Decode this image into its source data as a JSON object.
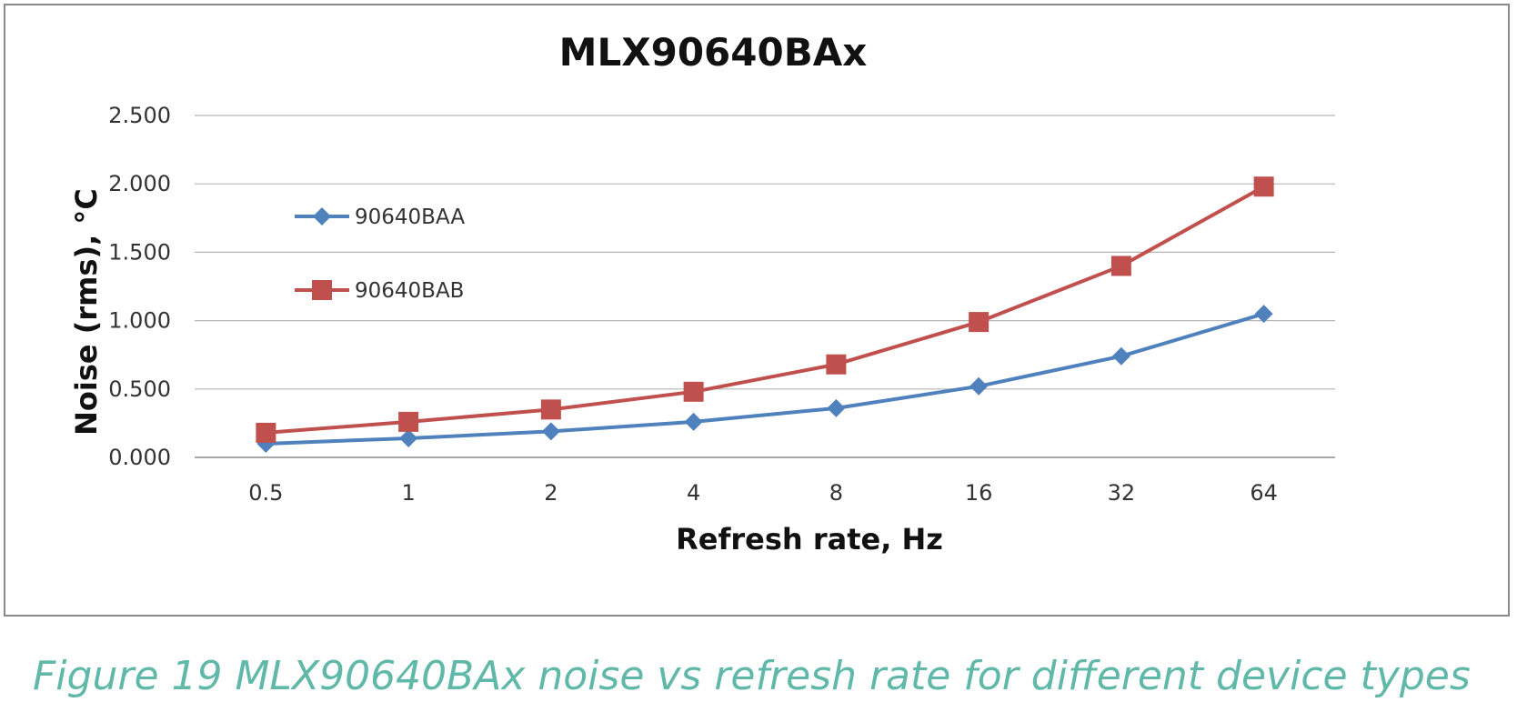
{
  "chart_data": {
    "type": "line",
    "title": "MLX90640BAx",
    "xlabel": "Refresh rate, Hz",
    "ylabel": "Noise (rms), °C",
    "categories": [
      "0.5",
      "1",
      "2",
      "4",
      "8",
      "16",
      "32",
      "64"
    ],
    "yticks": [
      "0.000",
      "0.500",
      "1.000",
      "1.500",
      "2.000",
      "2.500"
    ],
    "ylim": [
      0,
      2.5
    ],
    "grid": true,
    "legend_position": "upper-left inside plot",
    "series": [
      {
        "name": "90640BAA",
        "color": "#4f81bd",
        "marker": "diamond",
        "values": [
          0.1,
          0.14,
          0.19,
          0.26,
          0.36,
          0.52,
          0.74,
          1.05
        ]
      },
      {
        "name": "90640BAB",
        "color": "#c0504d",
        "marker": "square",
        "values": [
          0.18,
          0.26,
          0.35,
          0.48,
          0.68,
          0.99,
          1.4,
          1.98
        ]
      }
    ]
  },
  "caption": "Figure 19 MLX90640BAx noise vs refresh rate for different device types"
}
